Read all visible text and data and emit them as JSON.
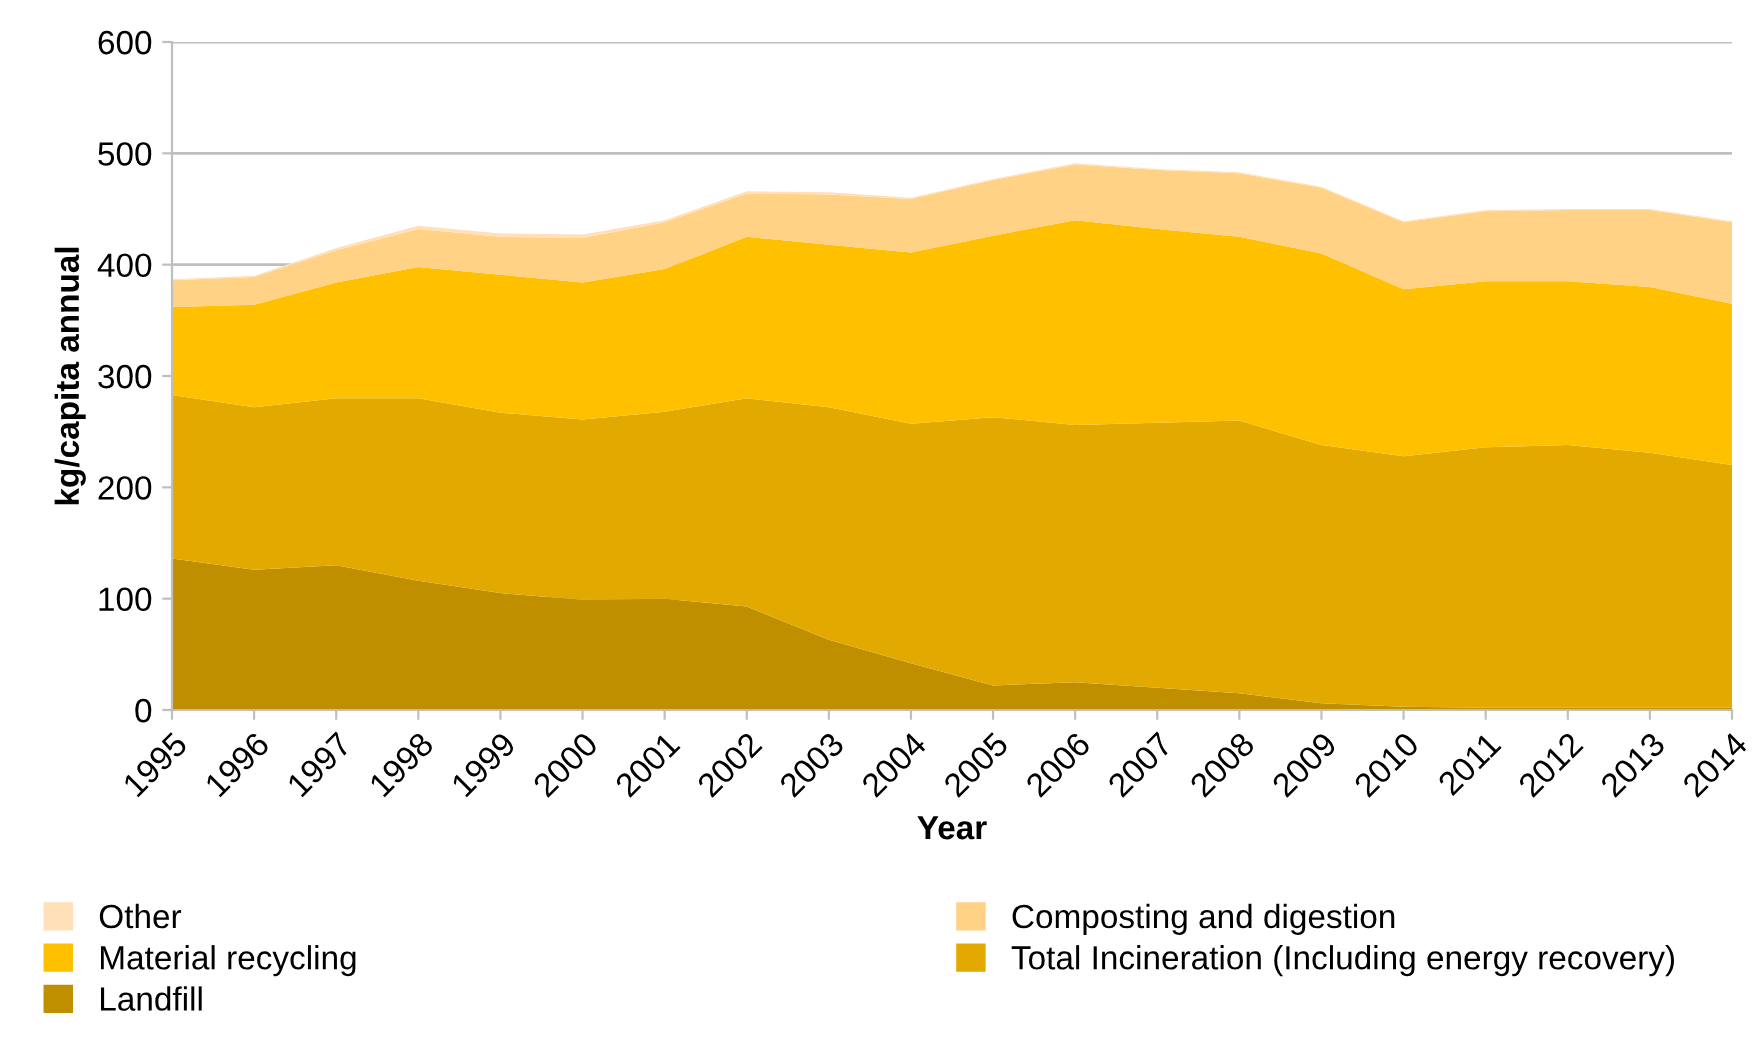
{
  "chart_data": {
    "type": "area",
    "stacked": true,
    "xlabel": "Year",
    "ylabel": "kg/capita annual",
    "categories": [
      "1995",
      "1996",
      "1997",
      "1998",
      "1999",
      "2000",
      "2001",
      "2002",
      "2003",
      "2004",
      "2005",
      "2006",
      "2007",
      "2008",
      "2009",
      "2010",
      "2011",
      "2012",
      "2013",
      "2014"
    ],
    "series": [
      {
        "name": "Landfill",
        "color": "#bf8f00",
        "values": [
          136,
          126,
          130,
          116,
          105,
          99,
          100,
          93,
          63,
          42,
          22,
          25,
          20,
          15,
          6,
          3,
          2,
          2,
          2,
          2
        ]
      },
      {
        "name": "Total Incineration (Including energy recovery)",
        "color": "#e2aa00",
        "values": [
          147,
          146,
          150,
          164,
          162,
          162,
          168,
          187,
          209,
          215,
          241,
          231,
          238,
          245,
          232,
          225,
          234,
          236,
          229,
          218
        ]
      },
      {
        "name": "Material recycling",
        "color": "#ffc000",
        "values": [
          79,
          92,
          104,
          118,
          124,
          123,
          128,
          145,
          146,
          154,
          163,
          184,
          174,
          165,
          172,
          150,
          149,
          147,
          149,
          145
        ]
      },
      {
        "name": "Composting and digestion",
        "color": "#ffd285",
        "values": [
          24,
          25,
          29,
          34,
          34,
          40,
          42,
          39,
          45,
          48,
          50,
          50,
          53,
          57,
          59,
          60,
          63,
          64,
          69,
          73
        ]
      },
      {
        "name": "Other",
        "color": "#ffe0b8",
        "values": [
          1,
          1,
          2,
          3,
          3,
          3,
          2,
          2,
          2,
          1,
          1,
          1,
          1,
          1,
          1,
          1,
          1,
          1,
          1,
          1
        ]
      }
    ],
    "ylim": [
      0,
      600
    ],
    "yticks": [
      0,
      100,
      200,
      300,
      400,
      500,
      600
    ],
    "grid": "y",
    "legend": "bottom"
  }
}
